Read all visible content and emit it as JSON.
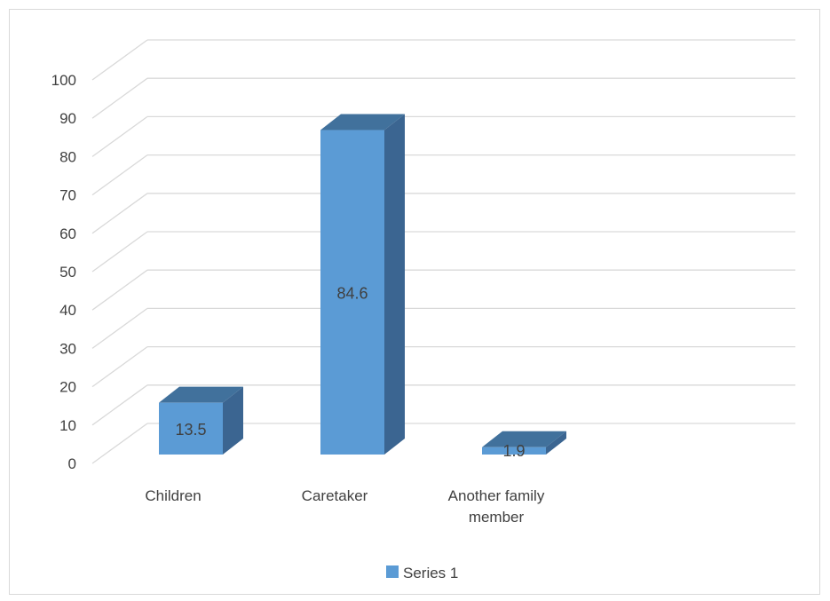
{
  "chart_data": {
    "type": "bar",
    "style": "3d-column",
    "categories": [
      "Children",
      "Caretaker",
      "Another family member"
    ],
    "category_label_lines": [
      [
        "Children"
      ],
      [
        "Caretaker"
      ],
      [
        "Another family",
        "member"
      ]
    ],
    "series": [
      {
        "name": "Series 1",
        "values": [
          13.5,
          84.6,
          1.9
        ]
      }
    ],
    "data_labels": [
      "13.5",
      "84.6",
      "1.9"
    ],
    "ylim": [
      0,
      100
    ],
    "yticks": [
      "0",
      "10",
      "20",
      "30",
      "40",
      "50",
      "60",
      "70",
      "80",
      "90",
      "100"
    ],
    "grid": true,
    "legend_position": "bottom",
    "colors": {
      "bar_front": "#5b9bd5",
      "bar_top": "#41719c",
      "bar_side": "#3b6591",
      "grid": "#d9d9d9",
      "text": "#404040",
      "frame": "#d9d9d9"
    }
  }
}
